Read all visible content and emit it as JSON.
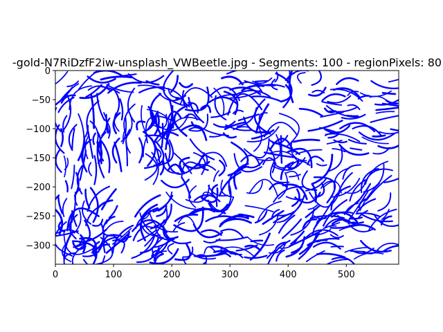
{
  "chart_data": {
    "type": "line",
    "title": "-gold-N7RiDzfF2iw-unsplash_VWBeetle.jpg - Segments: 100 - regionPixels: 80",
    "xlabel": "",
    "ylabel": "",
    "xlim": [
      0,
      590
    ],
    "ylim": [
      -333,
      0
    ],
    "xticks": [
      0,
      100,
      200,
      300,
      400,
      500
    ],
    "yticks": [
      0,
      -50,
      -100,
      -150,
      -200,
      -250,
      -300
    ],
    "grid": false,
    "legend": "none",
    "series_color": "#0000ff",
    "segments": 100,
    "regions": [
      {
        "x0": 0,
        "y0": -10,
        "x1": 70,
        "y1": -60,
        "dir": "diag"
      },
      {
        "x0": 65,
        "y0": 0,
        "x1": 190,
        "y1": -35,
        "dir": "horiz"
      },
      {
        "x0": 180,
        "y0": -20,
        "x1": 300,
        "y1": -75,
        "dir": "curve"
      },
      {
        "x0": 290,
        "y0": 0,
        "x1": 380,
        "y1": -50,
        "dir": "horiz"
      },
      {
        "x0": 360,
        "y0": -5,
        "x1": 470,
        "y1": -45,
        "dir": "curve"
      },
      {
        "x0": 450,
        "y0": -15,
        "x1": 590,
        "y1": -70,
        "dir": "horiz"
      },
      {
        "x0": 0,
        "y0": -60,
        "x1": 85,
        "y1": -170,
        "dir": "vert"
      },
      {
        "x0": 70,
        "y0": -55,
        "x1": 200,
        "y1": -150,
        "dir": "vert"
      },
      {
        "x0": 140,
        "y0": -80,
        "x1": 260,
        "y1": -170,
        "dir": "curve"
      },
      {
        "x0": 270,
        "y0": -70,
        "x1": 340,
        "y1": -115,
        "dir": "horiz"
      },
      {
        "x0": 320,
        "y0": -70,
        "x1": 430,
        "y1": -160,
        "dir": "curve"
      },
      {
        "x0": 430,
        "y0": -70,
        "x1": 590,
        "y1": -140,
        "dir": "horiz"
      },
      {
        "x0": 0,
        "y0": -160,
        "x1": 70,
        "y1": -260,
        "dir": "vert"
      },
      {
        "x0": 200,
        "y0": -150,
        "x1": 330,
        "y1": -230,
        "dir": "curve"
      },
      {
        "x0": 330,
        "y0": -150,
        "x1": 480,
        "y1": -220,
        "dir": "curve"
      },
      {
        "x0": 480,
        "y0": -170,
        "x1": 590,
        "y1": -260,
        "dir": "diag"
      },
      {
        "x0": 0,
        "y0": -250,
        "x1": 120,
        "y1": -333,
        "dir": "curve"
      },
      {
        "x0": 60,
        "y0": -220,
        "x1": 190,
        "y1": -320,
        "dir": "diag"
      },
      {
        "x0": 160,
        "y0": -250,
        "x1": 270,
        "y1": -330,
        "dir": "curve"
      },
      {
        "x0": 250,
        "y0": -235,
        "x1": 360,
        "y1": -320,
        "dir": "horiz"
      },
      {
        "x0": 340,
        "y0": -230,
        "x1": 470,
        "y1": -320,
        "dir": "diag"
      },
      {
        "x0": 450,
        "y0": -240,
        "x1": 590,
        "y1": -333,
        "dir": "horiz"
      }
    ]
  }
}
